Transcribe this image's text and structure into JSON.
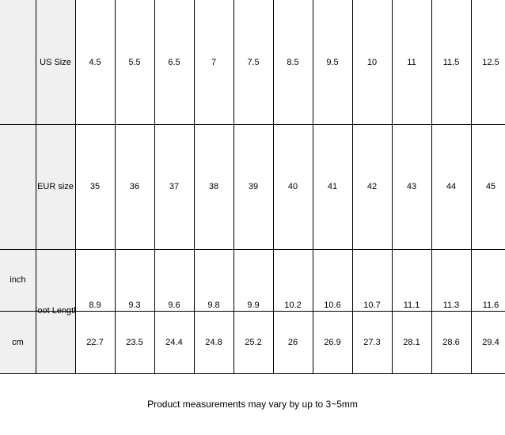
{
  "rows": {
    "us": {
      "label": "US Size",
      "values": [
        "4.5",
        "5.5",
        "6.5",
        "7",
        "7.5",
        "8.5",
        "9.5",
        "10",
        "11",
        "11.5",
        "12.5"
      ]
    },
    "eur": {
      "label": "EUR size",
      "values": [
        "35",
        "36",
        "37",
        "38",
        "39",
        "40",
        "41",
        "42",
        "43",
        "44",
        "45"
      ]
    },
    "foot_length_label": "Foot Length",
    "inch": {
      "label": "inch",
      "values": [
        "8.9",
        "9.3",
        "9.6",
        "9.8",
        "9.9",
        "10.2",
        "10.6",
        "10.7",
        "11.1",
        "11.3",
        "11.6"
      ]
    },
    "cm": {
      "label": "cm",
      "values": [
        "22.7",
        "23.5",
        "24.4",
        "24.8",
        "25.2",
        "26",
        "26.9",
        "27.3",
        "28.1",
        "28.6",
        "29.4"
      ]
    }
  },
  "footer": "Product measurements may vary by up to 3~5mm"
}
